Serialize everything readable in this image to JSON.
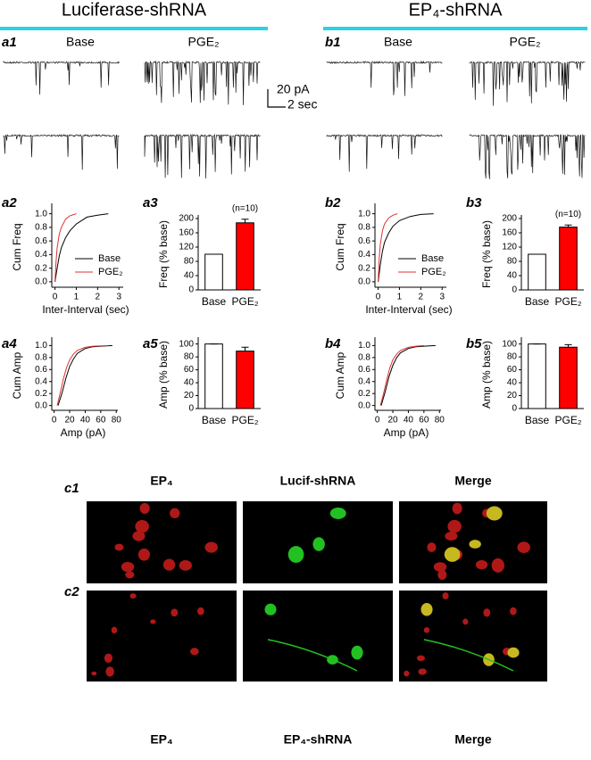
{
  "headers": [
    {
      "title": "Luciferase-shRNA",
      "trace_panel": "a1",
      "conditions": [
        "Base",
        "PGE₂"
      ]
    },
    {
      "title": "EP₄-shRNA",
      "trace_panel": "b1",
      "conditions": [
        "Base",
        "PGE₂"
      ]
    }
  ],
  "scale_bar": [
    "20 pA",
    "2 sec"
  ],
  "chart_data": [
    {
      "panel": "a2",
      "type": "line",
      "xlabel": "Inter-Interval (sec)",
      "ylabel": "Cum Freq",
      "xlim": [
        -0.15,
        3.2
      ],
      "xticks": [
        0,
        1,
        2,
        3
      ],
      "ylim": [
        -0.08,
        1.1
      ],
      "yticks": [
        {
          "value": 0,
          "label": "0.0"
        },
        {
          "value": 0.2,
          "label": "0.2"
        },
        {
          "value": 0.4,
          "label": "0.4"
        },
        {
          "value": 0.6,
          "label": "0.6"
        },
        {
          "value": 0.8,
          "label": "0.8"
        },
        {
          "value": 1,
          "label": "1.0"
        }
      ],
      "legend": "lower right",
      "series": [
        {
          "name": "Base",
          "color": "#000000",
          "x": [
            0,
            0.1,
            0.2,
            0.3,
            0.5,
            0.7,
            1.0,
            1.5,
            2.0,
            2.5
          ],
          "values": [
            0,
            0.2,
            0.38,
            0.5,
            0.65,
            0.75,
            0.85,
            0.95,
            0.98,
            1.0
          ]
        },
        {
          "name": "PGE₂",
          "color": "#e03030",
          "x": [
            0,
            0.05,
            0.1,
            0.2,
            0.3,
            0.5,
            0.7,
            1.0
          ],
          "values": [
            0,
            0.3,
            0.5,
            0.7,
            0.8,
            0.92,
            0.97,
            1.0
          ]
        }
      ]
    },
    {
      "panel": "a3",
      "type": "bar",
      "ylabel": "Freq (% base)",
      "categories": [
        "Base",
        "PGE₂"
      ],
      "values": [
        100,
        188
      ],
      "errors": [
        0,
        10
      ],
      "colors": [
        "#ffffff",
        "#ff0000"
      ],
      "ylim": [
        0,
        200
      ],
      "yticks": [
        0,
        40,
        80,
        120,
        160,
        200
      ],
      "annotation": "(n=10)"
    },
    {
      "panel": "a4",
      "type": "line",
      "xlabel": "Amp (pA)",
      "ylabel": "Cum Amp",
      "xlim": [
        -3,
        82
      ],
      "xticks": [
        0,
        20,
        40,
        60,
        80
      ],
      "ylim": [
        -0.08,
        1.08
      ],
      "yticks": [
        {
          "value": 0,
          "label": "0.0"
        },
        {
          "value": 0.2,
          "label": "0.2"
        },
        {
          "value": 0.4,
          "label": "0.4"
        },
        {
          "value": 0.6,
          "label": "0.6"
        },
        {
          "value": 0.8,
          "label": "0.8"
        },
        {
          "value": 1,
          "label": "1.0"
        }
      ],
      "series": [
        {
          "name": "Base",
          "color": "#000000",
          "x": [
            5,
            10,
            15,
            20,
            25,
            30,
            40,
            50,
            60,
            75
          ],
          "values": [
            0,
            0.2,
            0.45,
            0.65,
            0.78,
            0.87,
            0.95,
            0.98,
            0.99,
            1.0
          ]
        },
        {
          "name": "PGE₂",
          "color": "#e03030",
          "x": [
            4,
            8,
            12,
            16,
            20,
            25,
            30,
            40,
            50,
            70
          ],
          "values": [
            0,
            0.22,
            0.45,
            0.63,
            0.76,
            0.86,
            0.92,
            0.97,
            0.99,
            1.0
          ]
        }
      ]
    },
    {
      "panel": "a5",
      "type": "bar",
      "ylabel": "Amp (% base)",
      "categories": [
        "Base",
        "PGE₂"
      ],
      "values": [
        100,
        89
      ],
      "errors": [
        0,
        6
      ],
      "colors": [
        "#ffffff",
        "#ff0000"
      ],
      "ylim": [
        0,
        105
      ],
      "yticks": [
        0,
        20,
        40,
        60,
        80,
        100
      ]
    },
    {
      "panel": "b2",
      "type": "line",
      "xlabel": "Inter-Interval (sec)",
      "ylabel": "Cum Freq",
      "xlim": [
        -0.15,
        3.2
      ],
      "xticks": [
        0,
        1,
        2,
        3
      ],
      "ylim": [
        -0.08,
        1.1
      ],
      "yticks": [
        {
          "value": 0,
          "label": "0.0"
        },
        {
          "value": 0.2,
          "label": "0.2"
        },
        {
          "value": 0.4,
          "label": "0.4"
        },
        {
          "value": 0.6,
          "label": "0.6"
        },
        {
          "value": 0.8,
          "label": "0.8"
        },
        {
          "value": 1,
          "label": "1.0"
        }
      ],
      "legend": "lower right",
      "series": [
        {
          "name": "Base",
          "color": "#000000",
          "x": [
            0,
            0.1,
            0.2,
            0.3,
            0.5,
            0.7,
            1.0,
            1.5,
            2.0,
            2.6
          ],
          "values": [
            0,
            0.25,
            0.45,
            0.58,
            0.72,
            0.82,
            0.9,
            0.96,
            0.99,
            1.0
          ]
        },
        {
          "name": "PGE₂",
          "color": "#e03030",
          "x": [
            0,
            0.05,
            0.1,
            0.2,
            0.3,
            0.5,
            0.7,
            0.9
          ],
          "values": [
            0,
            0.35,
            0.55,
            0.75,
            0.85,
            0.94,
            0.98,
            1.0
          ]
        }
      ]
    },
    {
      "panel": "b3",
      "type": "bar",
      "ylabel": "Freq (% base)",
      "categories": [
        "Base",
        "PGE₂"
      ],
      "values": [
        100,
        176
      ],
      "errors": [
        0,
        6
      ],
      "colors": [
        "#ffffff",
        "#ff0000"
      ],
      "ylim": [
        0,
        200
      ],
      "yticks": [
        0,
        40,
        80,
        120,
        160,
        200
      ],
      "annotation": "(n=10)"
    },
    {
      "panel": "b4",
      "type": "line",
      "xlabel": "Amp (pA)",
      "ylabel": "Cum Amp",
      "xlim": [
        -3,
        82
      ],
      "xticks": [
        0,
        20,
        40,
        60,
        80
      ],
      "ylim": [
        -0.08,
        1.08
      ],
      "yticks": [
        {
          "value": 0,
          "label": "0.0"
        },
        {
          "value": 0.2,
          "label": "0.2"
        },
        {
          "value": 0.4,
          "label": "0.4"
        },
        {
          "value": 0.6,
          "label": "0.6"
        },
        {
          "value": 0.8,
          "label": "0.8"
        },
        {
          "value": 1,
          "label": "1.0"
        }
      ],
      "series": [
        {
          "name": "Base",
          "color": "#000000",
          "x": [
            5,
            10,
            15,
            20,
            25,
            30,
            40,
            50,
            60,
            75
          ],
          "values": [
            0,
            0.22,
            0.48,
            0.67,
            0.8,
            0.88,
            0.95,
            0.98,
            0.99,
            1.0
          ]
        },
        {
          "name": "PGE₂",
          "color": "#e03030",
          "x": [
            4,
            8,
            12,
            16,
            20,
            25,
            30,
            40,
            50,
            60
          ],
          "values": [
            0,
            0.2,
            0.42,
            0.62,
            0.76,
            0.86,
            0.92,
            0.97,
            0.99,
            1.0
          ]
        }
      ]
    },
    {
      "panel": "b5",
      "type": "bar",
      "ylabel": "Amp (% base)",
      "categories": [
        "Base",
        "PGE₂"
      ],
      "values": [
        100,
        95
      ],
      "errors": [
        0,
        4
      ],
      "colors": [
        "#ffffff",
        "#ff0000"
      ],
      "ylim": [
        0,
        105
      ],
      "yticks": [
        0,
        20,
        40,
        60,
        80,
        100
      ]
    }
  ],
  "images": {
    "panels": [
      "c1",
      "c2"
    ],
    "top_labels": [
      "EP₄",
      "Lucif-shRNA",
      "Merge"
    ],
    "bottom_labels": [
      "EP₄",
      "EP₄-shRNA",
      "Merge"
    ]
  }
}
